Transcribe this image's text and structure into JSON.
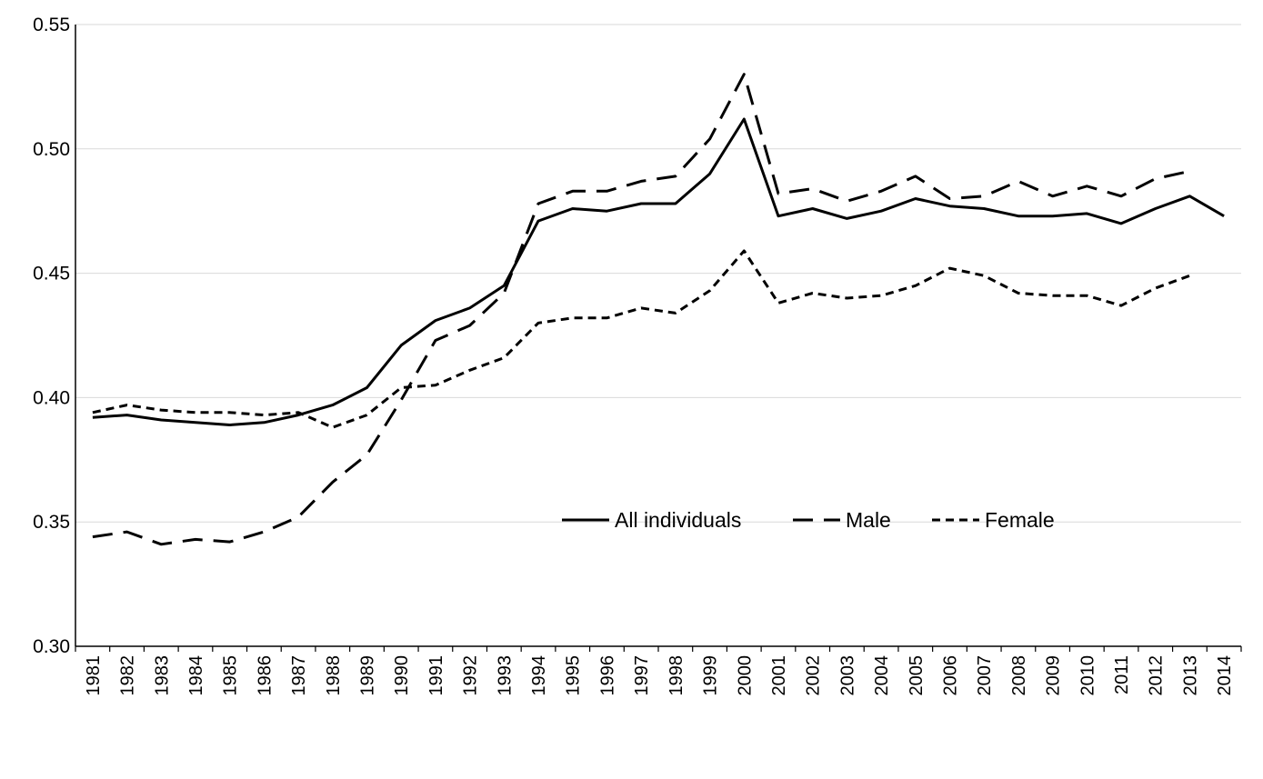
{
  "chart_data": {
    "type": "line",
    "title": "",
    "xlabel": "",
    "ylabel": "",
    "ylim": [
      0.3,
      0.55
    ],
    "yticks": [
      "0.30",
      "0.35",
      "0.40",
      "0.45",
      "0.50",
      "0.55"
    ],
    "grid": "horizontal",
    "legend_position": "center-right",
    "categories": [
      "1981",
      "1982",
      "1983",
      "1984",
      "1985",
      "1986",
      "1987",
      "1988",
      "1989",
      "1990",
      "1991",
      "1992",
      "1993",
      "1994",
      "1995",
      "1996",
      "1997",
      "1998",
      "1999",
      "2000",
      "2001",
      "2002",
      "2003",
      "2004",
      "2005",
      "2006",
      "2007",
      "2008",
      "2009",
      "2010",
      "2011",
      "2012",
      "2013",
      "2014"
    ],
    "series": [
      {
        "name": "All individuals",
        "style": "solid",
        "color": "#000000",
        "values": [
          0.392,
          0.393,
          0.391,
          0.39,
          0.389,
          0.39,
          0.393,
          0.397,
          0.404,
          0.421,
          0.431,
          0.436,
          0.445,
          0.471,
          0.476,
          0.475,
          0.478,
          0.478,
          0.49,
          0.512,
          0.473,
          0.476,
          0.472,
          0.475,
          0.48,
          0.477,
          0.476,
          0.473,
          0.473,
          0.474,
          0.47,
          0.476,
          0.481,
          0.473
        ]
      },
      {
        "name": "Male",
        "style": "dashed",
        "color": "#000000",
        "values": [
          0.344,
          0.346,
          0.341,
          0.343,
          0.342,
          0.346,
          0.352,
          0.366,
          0.377,
          0.399,
          0.423,
          0.429,
          0.442,
          0.478,
          0.483,
          0.483,
          0.487,
          0.489,
          0.504,
          0.53,
          0.482,
          0.484,
          0.479,
          0.483,
          0.489,
          0.48,
          0.481,
          0.487,
          0.481,
          0.485,
          0.481,
          0.488,
          0.491,
          null
        ]
      },
      {
        "name": "Female",
        "style": "dotted",
        "color": "#000000",
        "values": [
          0.394,
          0.397,
          0.395,
          0.394,
          0.394,
          0.393,
          0.394,
          0.388,
          0.393,
          0.404,
          0.405,
          0.411,
          0.416,
          0.43,
          0.432,
          0.432,
          0.436,
          0.434,
          0.443,
          0.459,
          0.438,
          0.442,
          0.44,
          0.441,
          0.445,
          0.452,
          0.449,
          0.442,
          0.441,
          0.441,
          0.437,
          0.444,
          0.449,
          null
        ]
      }
    ]
  }
}
